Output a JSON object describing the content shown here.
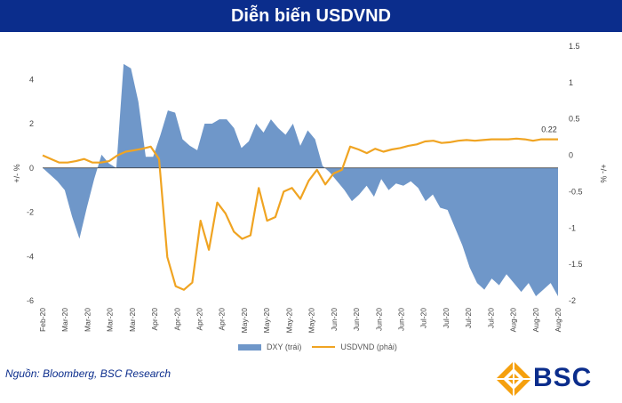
{
  "header": {
    "title": "Diễn biến USDVND"
  },
  "chart_data": {
    "type": "area+line",
    "title": "Diễn biến USDVND",
    "ylabel_left": "+/- %",
    "ylabel_right": "+/- %",
    "left_axis": {
      "ylim": [
        -6,
        5.5
      ],
      "ticks": [
        4,
        2,
        0,
        -2,
        -4,
        -6
      ]
    },
    "right_axis": {
      "ylim": [
        -2,
        1.5
      ],
      "ticks": [
        1.5,
        1,
        0.5,
        0,
        -0.5,
        -1,
        -1.5,
        -2
      ]
    },
    "x_tick_labels": [
      "Feb-20",
      "Mar-20",
      "Mar-20",
      "Mar-20",
      "Mar-20",
      "Apr-20",
      "Apr-20",
      "Apr-20",
      "Apr-20",
      "May-20",
      "May-20",
      "May-20",
      "May-20",
      "Jun-20",
      "Jun-20",
      "Jun-20",
      "Jun-20",
      "Jul-20",
      "Jul-20",
      "Jul-20",
      "Jul-20",
      "Aug-20",
      "Aug-20",
      "Aug-20"
    ],
    "grid": false,
    "legend_position": "bottom",
    "series": [
      {
        "name": "DXY (trái)",
        "type": "area",
        "axis": "left",
        "color": "#6f97c9",
        "values": [
          0,
          -0.3,
          -0.6,
          -1.0,
          -2.2,
          -3.2,
          -1.8,
          -0.5,
          0.6,
          0.2,
          0,
          4.7,
          4.5,
          3.0,
          0.5,
          0.5,
          1.5,
          2.6,
          2.5,
          1.3,
          1.0,
          0.8,
          2.0,
          2.0,
          2.2,
          2.2,
          1.8,
          0.9,
          1.2,
          2.0,
          1.6,
          2.2,
          1.8,
          1.5,
          2.0,
          1.0,
          1.7,
          1.3,
          0.1,
          -0.2,
          -0.6,
          -1.0,
          -1.5,
          -1.2,
          -0.8,
          -1.3,
          -0.5,
          -1.0,
          -0.7,
          -0.8,
          -0.6,
          -0.9,
          -1.5,
          -1.2,
          -1.8,
          -1.9,
          -2.7,
          -3.5,
          -4.5,
          -5.2,
          -5.5,
          -5.0,
          -5.3,
          -4.8,
          -5.2,
          -5.6,
          -5.2,
          -5.8,
          -5.5,
          -5.2,
          -5.8
        ]
      },
      {
        "name": "USDVND (phải)",
        "type": "line",
        "axis": "right",
        "color": "#f0a422",
        "values": [
          0,
          -0.05,
          -0.1,
          -0.1,
          -0.08,
          -0.05,
          -0.1,
          -0.1,
          -0.08,
          0,
          0.05,
          0.07,
          0.09,
          0.12,
          -0.05,
          -1.4,
          -1.8,
          -1.85,
          -1.75,
          -0.9,
          -1.3,
          -0.65,
          -0.8,
          -1.05,
          -1.15,
          -1.1,
          -0.45,
          -0.9,
          -0.85,
          -0.5,
          -0.45,
          -0.6,
          -0.35,
          -0.2,
          -0.4,
          -0.25,
          -0.2,
          0.12,
          0.08,
          0.03,
          0.09,
          0.05,
          0.08,
          0.1,
          0.13,
          0.15,
          0.19,
          0.2,
          0.17,
          0.18,
          0.2,
          0.21,
          0.2,
          0.21,
          0.22,
          0.22,
          0.22,
          0.23,
          0.22,
          0.2,
          0.22,
          0.22,
          0.22
        ],
        "end_label": "0.22"
      }
    ]
  },
  "source": "Nguồn: Bloomberg, BSC Research",
  "logo": {
    "text": "BSC",
    "icon": "bsc-diamond-icon",
    "color": "#0b2d8c",
    "accent": "#f5a00e"
  }
}
